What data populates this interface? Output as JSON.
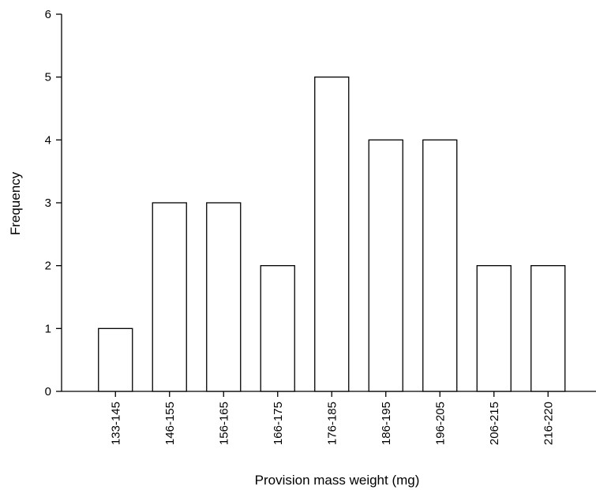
{
  "chart_data": {
    "type": "bar",
    "title": "",
    "xlabel": "Provision mass weight (mg)",
    "ylabel": "Frequency",
    "categories": [
      "133-145",
      "146-155",
      "156-165",
      "166-175",
      "176-185",
      "186-195",
      "196-205",
      "206-215",
      "216-220"
    ],
    "values": [
      1,
      3,
      3,
      2,
      5,
      4,
      4,
      2,
      2
    ],
    "ylim": [
      0,
      6
    ],
    "yticks": [
      "0",
      "1",
      "2",
      "3",
      "4",
      "5",
      "6"
    ],
    "grid": false,
    "legend": "none",
    "bar_fill": "#ffffff",
    "bar_stroke": "#000000"
  }
}
